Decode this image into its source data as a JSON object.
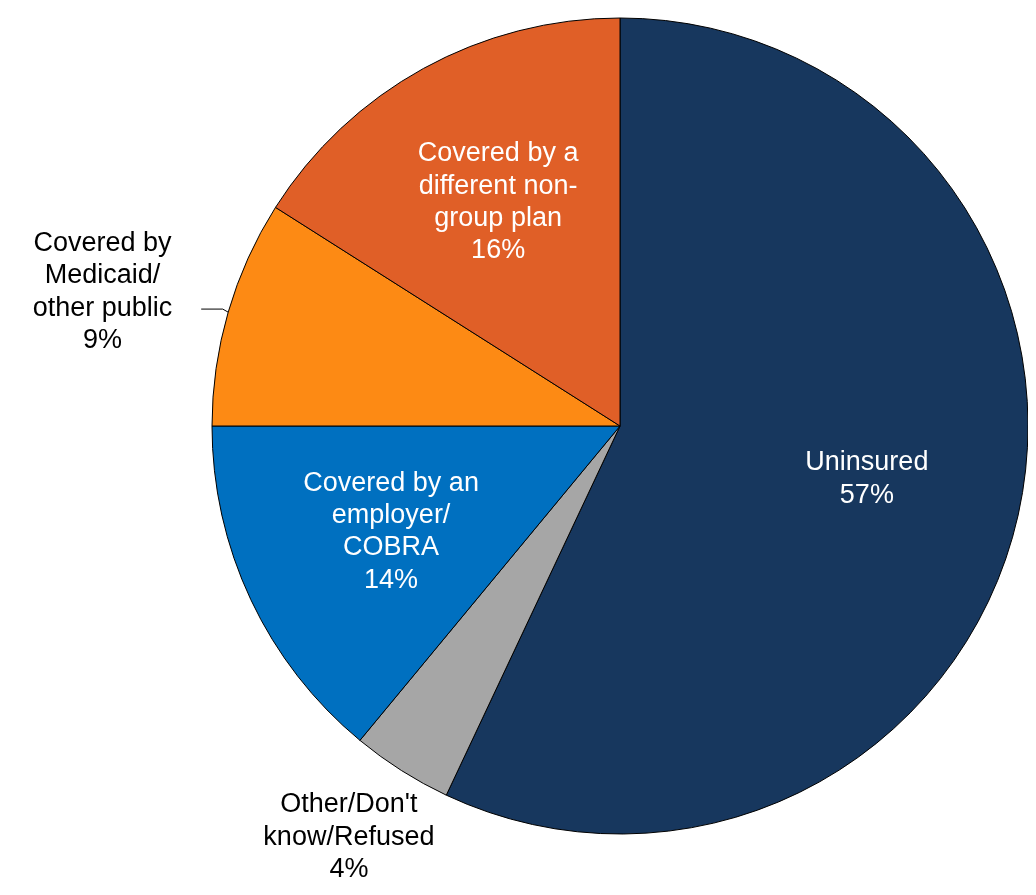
{
  "chart_data": {
    "type": "pie",
    "categories": [
      "Uninsured",
      "Other/Don't\nknow/Refused",
      "Covered by an\nemployer/\nCOBRA",
      "Covered by\nMedicaid/\nother public",
      "Covered by a\ndifferent non-\ngroup plan"
    ],
    "values": [
      57,
      4,
      14,
      9,
      16
    ],
    "value_labels": [
      "57%",
      "4%",
      "14%",
      "9%",
      "16%"
    ],
    "colors": [
      "#17375e",
      "#a6a6a6",
      "#0070c0",
      "#fd8a14",
      "#e05f27"
    ]
  }
}
